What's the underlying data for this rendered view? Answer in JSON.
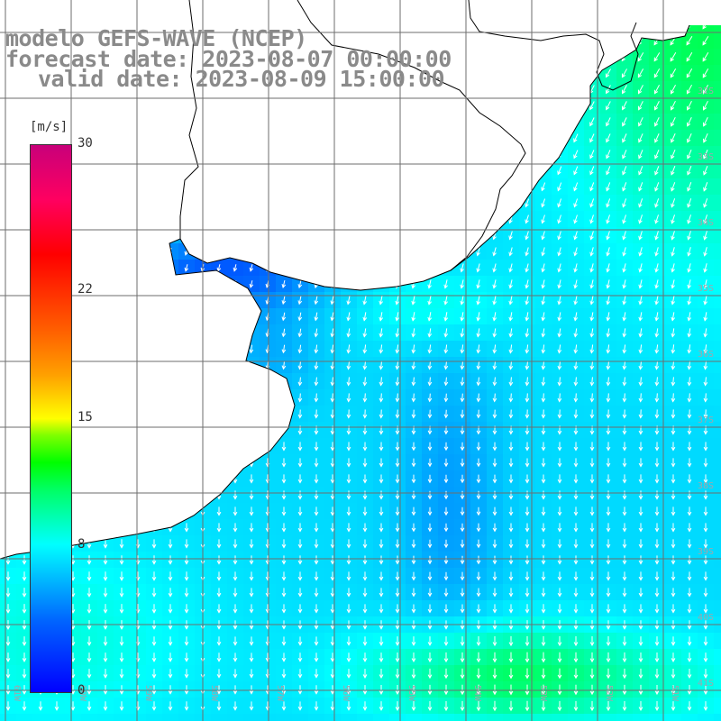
{
  "title": {
    "model": "modelo GEFS-WAVE (NCEP)",
    "forecast": "forecast date: 2023-08-07 00:00:00",
    "valid": "valid date: 2023-08-09 15:00:00"
  },
  "colorbar": {
    "unit": "[m/s]",
    "ticks": [
      {
        "label": "30",
        "value": 30
      },
      {
        "label": "22",
        "value": 22
      },
      {
        "label": "15",
        "value": 15
      },
      {
        "label": "8",
        "value": 8
      },
      {
        "label": "0",
        "value": 0
      }
    ],
    "min": 0,
    "max": 30
  },
  "axes": {
    "lat_labels": [
      "32S",
      "33S",
      "34S",
      "35S",
      "36S",
      "37S",
      "38S",
      "39S",
      "40S",
      "41S"
    ],
    "lon_labels": [
      "61W",
      "60W",
      "59W",
      "58W",
      "57W",
      "56W",
      "55W",
      "54W",
      "53W",
      "52W",
      "51W"
    ]
  },
  "colors": {
    "land": "#ffffff",
    "coast": "#000000",
    "grid": "#6e6e6e",
    "arrow": "#ffffff",
    "title_text": "#8a8a8a"
  },
  "field": {
    "variable": "wind speed",
    "units": "m/s",
    "wind_direction": "from northeast to southwest (arrows pointing south/southwest)"
  }
}
